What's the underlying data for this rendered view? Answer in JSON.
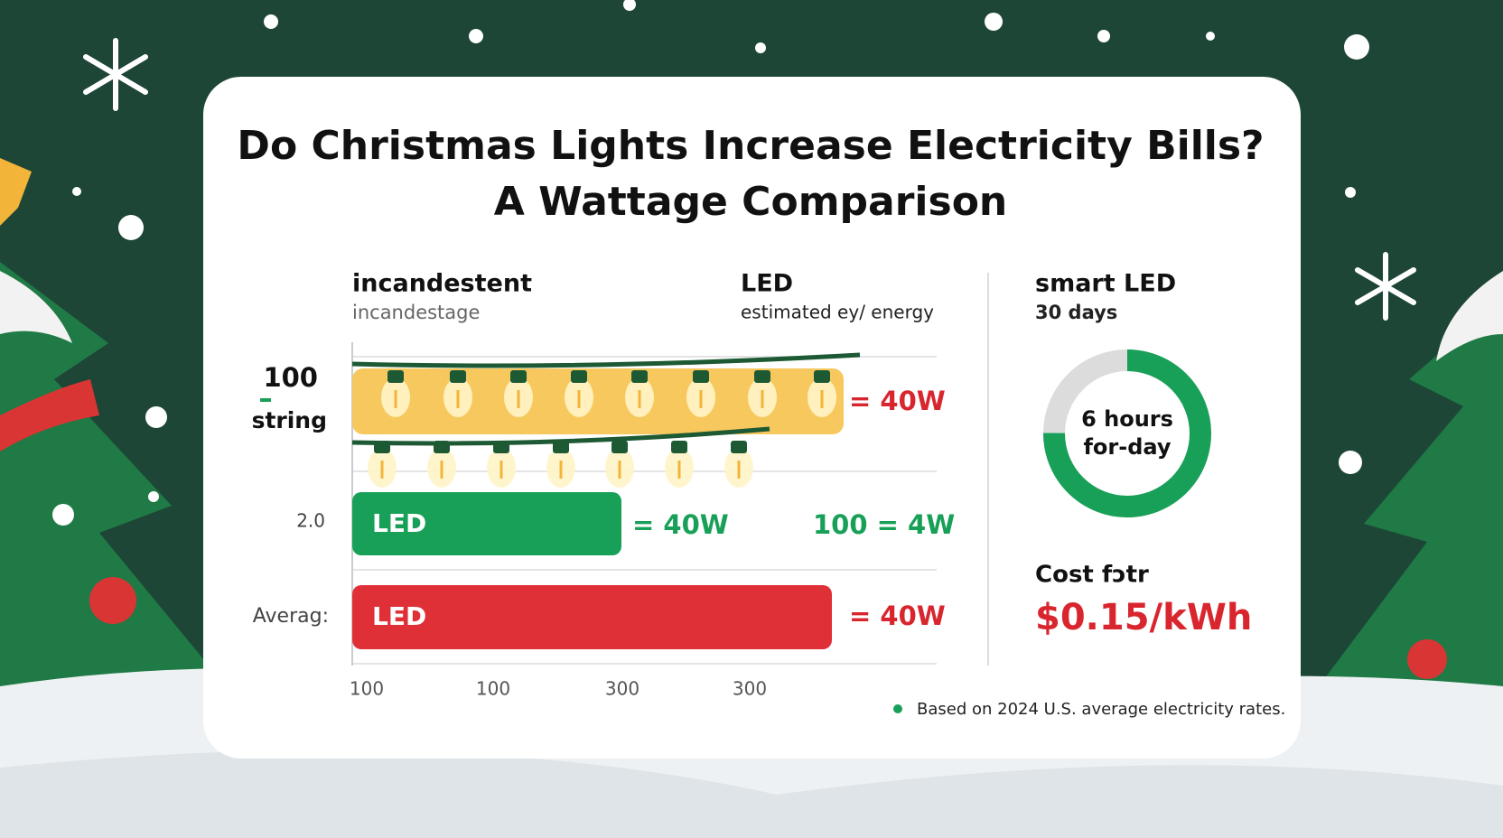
{
  "header": {
    "title_line1": "Do Christmas Lights Increase Electricity Bills?",
    "title_line2": "A Wattage Comparison"
  },
  "columns": [
    {
      "title": "incandestent",
      "subtitle": "incandestage"
    },
    {
      "title": "LED",
      "subtitle": "estimated ey/ energy"
    },
    {
      "title": "smart LED",
      "subtitle": "30 days"
    }
  ],
  "row_labels": [
    "100",
    "string",
    "2.0",
    "Averag:"
  ],
  "bars": [
    {
      "value_label": "= 40W"
    },
    {
      "label": "LED",
      "value_label": "= 40W",
      "extra_label": "100 = 4W"
    },
    {
      "label": "LED",
      "value_label": "= 40W"
    }
  ],
  "x_labels": [
    "100",
    "100",
    "300",
    "300"
  ],
  "donut": {
    "line1": "6 hours",
    "line2": "for-day"
  },
  "cost": {
    "label": "Cost fɔtr",
    "value": "$0.15/kWh"
  },
  "footnote": "Based on 2024 U.S. average electricity rates."
}
